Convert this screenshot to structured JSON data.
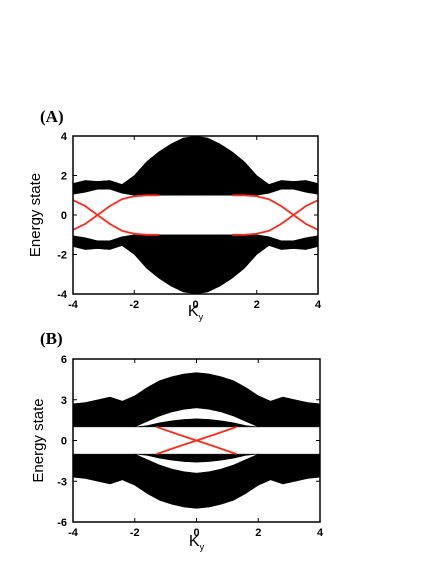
{
  "chart_data": [
    {
      "panel_label": "(A)",
      "type": "line",
      "xlabel": "K",
      "xlabel_sub": "y",
      "ylabel": "Energy state",
      "xlim": [
        -4,
        4
      ],
      "ylim": [
        -4,
        4
      ],
      "x_ticks": [
        -4,
        -2,
        0,
        2,
        4
      ],
      "y_ticks": [
        -4,
        -2,
        0,
        2,
        4
      ],
      "bands": [
        {
          "name": "upper",
          "x": [
            -4,
            -3.6,
            -3.2,
            -2.8,
            -2.4,
            -2,
            -1.6,
            -1.2,
            -0.8,
            -0.4,
            0,
            0.4,
            0.8,
            1.2,
            1.6,
            2,
            2.4,
            2.8,
            3.2,
            3.6,
            4
          ],
          "lower": [
            1.05,
            1.15,
            1.3,
            1.3,
            1.1,
            1.0,
            1.0,
            1.0,
            1.0,
            1.0,
            1.0,
            1.0,
            1.0,
            1.0,
            1.0,
            1.0,
            1.1,
            1.3,
            1.3,
            1.15,
            1.05
          ],
          "upper": [
            1.6,
            1.75,
            1.7,
            1.75,
            1.55,
            2.0,
            2.7,
            3.2,
            3.6,
            3.9,
            4.0,
            3.9,
            3.6,
            3.2,
            2.7,
            2.0,
            1.55,
            1.75,
            1.7,
            1.75,
            1.6
          ]
        },
        {
          "name": "lower",
          "x": [
            -4,
            -3.6,
            -3.2,
            -2.8,
            -2.4,
            -2,
            -1.6,
            -1.2,
            -0.8,
            -0.4,
            0,
            0.4,
            0.8,
            1.2,
            1.6,
            2,
            2.4,
            2.8,
            3.2,
            3.6,
            4
          ],
          "lower": [
            -1.6,
            -1.75,
            -1.7,
            -1.75,
            -1.55,
            -2.0,
            -2.7,
            -3.2,
            -3.6,
            -3.9,
            -4.0,
            -3.9,
            -3.6,
            -3.2,
            -2.7,
            -2.0,
            -1.55,
            -1.75,
            -1.7,
            -1.75,
            -1.6
          ],
          "upper": [
            -1.05,
            -1.15,
            -1.3,
            -1.3,
            -1.1,
            -1.0,
            -1.0,
            -1.0,
            -1.0,
            -1.0,
            -1.0,
            -1.0,
            -1.0,
            -1.0,
            -1.0,
            -1.0,
            -1.1,
            -1.3,
            -1.3,
            -1.15,
            -1.05
          ]
        }
      ],
      "edge_states": [
        {
          "x": [
            -4,
            -3.6,
            -3.2,
            -2.8,
            -2.4,
            -2.0,
            -1.6,
            -1.2
          ],
          "y": [
            -0.75,
            -0.45,
            0.0,
            0.45,
            0.8,
            0.95,
            1.0,
            1.0
          ]
        },
        {
          "x": [
            -4,
            -3.6,
            -3.2,
            -2.8,
            -2.4,
            -2.0,
            -1.6,
            -1.2
          ],
          "y": [
            0.75,
            0.45,
            0.0,
            -0.45,
            -0.8,
            -0.95,
            -1.0,
            -1.0
          ]
        },
        {
          "x": [
            1.2,
            1.6,
            2.0,
            2.4,
            2.8,
            3.2,
            3.6,
            4
          ],
          "y": [
            1.0,
            1.0,
            0.95,
            0.8,
            0.45,
            0.0,
            -0.45,
            -0.75
          ]
        },
        {
          "x": [
            1.2,
            1.6,
            2.0,
            2.4,
            2.8,
            3.2,
            3.6,
            4
          ],
          "y": [
            -1.0,
            -1.0,
            -0.95,
            -0.8,
            -0.45,
            0.0,
            0.45,
            0.75
          ]
        }
      ],
      "band_color": "#000000",
      "edge_color": "#ff2a1a"
    },
    {
      "panel_label": "(B)",
      "type": "line",
      "xlabel": "K",
      "xlabel_sub": "y",
      "ylabel": "Energy state",
      "xlim": [
        -4,
        4
      ],
      "ylim": [
        -6,
        6
      ],
      "x_ticks": [
        -4,
        -2,
        0,
        2,
        4
      ],
      "x_tick_labels": [
        "-4",
        "-2",
        "0",
        "2",
        "4"
      ],
      "y_ticks": [
        -6,
        -3,
        0,
        3,
        6
      ],
      "bands": [
        {
          "name": "upper",
          "x": [
            -4,
            -3.6,
            -3.2,
            -2.8,
            -2.4,
            -2,
            -1.6,
            -1.2,
            -0.8,
            -0.4,
            0,
            0.4,
            0.8,
            1.2,
            1.6,
            2,
            2.4,
            2.8,
            3.2,
            3.6,
            4
          ],
          "lower": [
            1.0,
            1.0,
            1.0,
            1.0,
            1.0,
            1.0,
            1.4,
            1.8,
            2.1,
            2.3,
            2.4,
            2.3,
            2.1,
            1.8,
            1.4,
            1.0,
            1.0,
            1.0,
            1.0,
            1.0,
            1.0
          ],
          "upper": [
            2.7,
            2.8,
            3.0,
            3.2,
            2.9,
            3.3,
            3.9,
            4.4,
            4.7,
            4.9,
            5.0,
            4.9,
            4.7,
            4.4,
            3.9,
            3.3,
            2.9,
            3.2,
            3.0,
            2.8,
            2.7
          ]
        },
        {
          "name": "upper_cap",
          "x": [
            -2,
            -1.6,
            -1.2,
            -0.8,
            -0.4,
            0,
            0.4,
            0.8,
            1.2,
            1.6,
            2
          ],
          "lower": [
            1.0,
            1.0,
            1.0,
            1.0,
            1.0,
            1.0,
            1.0,
            1.0,
            1.0,
            1.0,
            1.0
          ],
          "upper": [
            1.0,
            1.1,
            1.3,
            1.45,
            1.55,
            1.6,
            1.55,
            1.45,
            1.3,
            1.1,
            1.0
          ]
        },
        {
          "name": "lower",
          "x": [
            -4,
            -3.6,
            -3.2,
            -2.8,
            -2.4,
            -2,
            -1.6,
            -1.2,
            -0.8,
            -0.4,
            0,
            0.4,
            0.8,
            1.2,
            1.6,
            2,
            2.4,
            2.8,
            3.2,
            3.6,
            4
          ],
          "lower": [
            -2.7,
            -2.8,
            -3.0,
            -3.2,
            -2.9,
            -3.3,
            -3.9,
            -4.4,
            -4.7,
            -4.9,
            -5.0,
            -4.9,
            -4.7,
            -4.4,
            -3.9,
            -3.3,
            -2.9,
            -3.2,
            -3.0,
            -2.8,
            -2.7
          ],
          "upper": [
            -1.0,
            -1.0,
            -1.0,
            -1.0,
            -1.0,
            -1.0,
            -1.4,
            -1.8,
            -2.1,
            -2.3,
            -2.4,
            -2.3,
            -2.1,
            -1.8,
            -1.4,
            -1.0,
            -1.0,
            -1.0,
            -1.0,
            -1.0,
            -1.0
          ]
        },
        {
          "name": "lower_cap",
          "x": [
            -2,
            -1.6,
            -1.2,
            -0.8,
            -0.4,
            0,
            0.4,
            0.8,
            1.2,
            1.6,
            2
          ],
          "lower": [
            -1.0,
            -1.1,
            -1.3,
            -1.45,
            -1.55,
            -1.6,
            -1.55,
            -1.45,
            -1.3,
            -1.1,
            -1.0
          ],
          "upper": [
            -1.0,
            -1.0,
            -1.0,
            -1.0,
            -1.0,
            -1.0,
            -1.0,
            -1.0,
            -1.0,
            -1.0,
            -1.0
          ]
        }
      ],
      "edge_states": [
        {
          "x": [
            -1.3,
            -0.6,
            0,
            0.6,
            1.3
          ],
          "y": [
            -1.0,
            -0.45,
            0.0,
            0.45,
            1.0
          ]
        },
        {
          "x": [
            -1.3,
            -0.6,
            0,
            0.6,
            1.3
          ],
          "y": [
            1.0,
            0.45,
            0.0,
            -0.45,
            -1.0
          ]
        }
      ],
      "band_color": "#000000",
      "edge_color": "#ff2a1a"
    }
  ]
}
